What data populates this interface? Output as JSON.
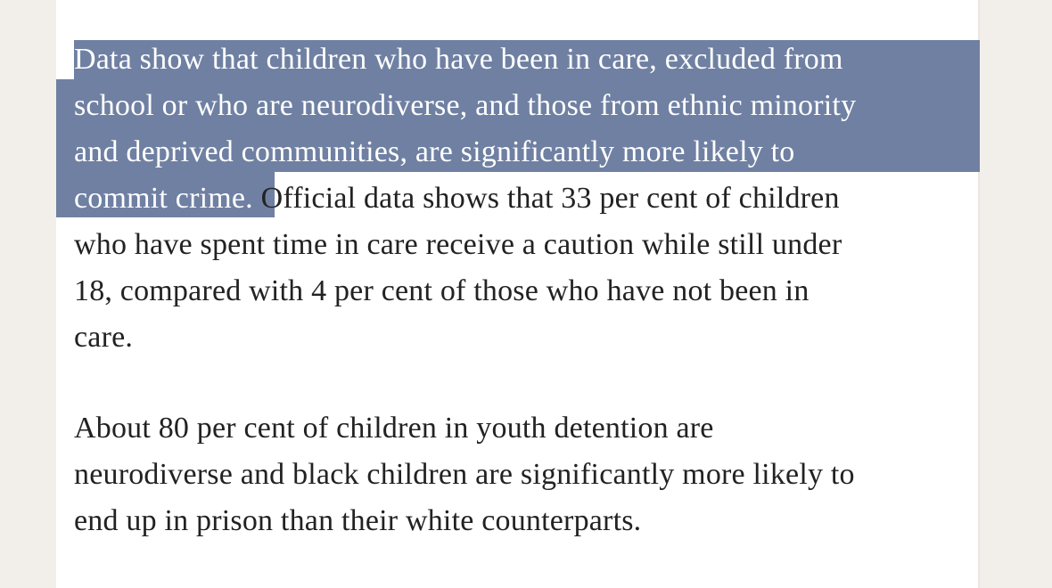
{
  "article": {
    "paragraph_1": {
      "selected_lines": [
        "Data show that children who have been in care, excluded from",
        "school or who are neurodiverse, and those from ethnic minority",
        "and deprived communities, are significantly more likely to",
        "commit crime."
      ],
      "rest_of_line_4": " Official data shows that 33 per cent of children",
      "lines": [
        "who have spent time in care receive a caution while still under",
        "18, compared with 4 per cent of those who have not been in",
        "care."
      ]
    },
    "paragraph_2": {
      "lines": [
        "About 80 per cent of children in youth detention are",
        "neurodiverse and black children are significantly more likely to",
        "end up in prison than their white counterparts."
      ]
    }
  },
  "colors": {
    "selection": "#6f80a2",
    "text": "#222222",
    "page_background": "#f2efea"
  }
}
